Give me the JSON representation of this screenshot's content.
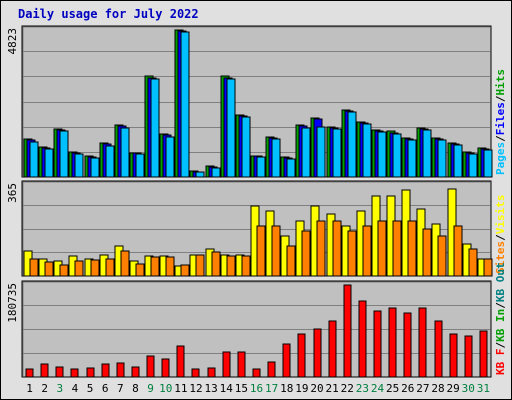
{
  "title": "Daily usage for July 2022",
  "colors": {
    "frame_bg": "#e0e0e0",
    "plot_bg": "#c0c0c0",
    "hits": "#00a000",
    "files": "#0000ff",
    "pages": "#00c0ff",
    "visits": "#ffff00",
    "sites": "#ff8000",
    "kb_in": "#00a000",
    "kb_out": "#008080",
    "kb_f": "#ff0000",
    "weekday_label": "#000000",
    "weekend_label": "#008040",
    "title_color": "#0000c0"
  },
  "chart_data": [
    {
      "type": "bar",
      "name": "hits-files-pages",
      "ymax_label": "4823",
      "ylim": [
        0,
        4823
      ],
      "legend": [
        {
          "label": "Pages",
          "color": "#00c0ff"
        },
        {
          "label": "Files",
          "color": "#0000ff"
        },
        {
          "label": "Hits",
          "color": "#00a000"
        }
      ],
      "legend_sep": "/",
      "categories": [
        "1",
        "2",
        "3",
        "4",
        "5",
        "6",
        "7",
        "8",
        "9",
        "10",
        "11",
        "12",
        "13",
        "14",
        "15",
        "16",
        "17",
        "18",
        "19",
        "20",
        "21",
        "22",
        "23",
        "24",
        "25",
        "26",
        "27",
        "28",
        "29",
        "30",
        "31"
      ],
      "series": [
        {
          "name": "Hits",
          "values": [
            1250,
            1000,
            1580,
            820,
            680,
            1100,
            1700,
            800,
            3300,
            1400,
            4823,
            200,
            350,
            3300,
            2050,
            700,
            1320,
            650,
            1700,
            1950,
            1650,
            2200,
            1800,
            1550,
            1500,
            1280,
            1600,
            1280,
            1120,
            820,
            950
          ]
        },
        {
          "name": "Files",
          "values": [
            1200,
            950,
            1550,
            790,
            650,
            1070,
            1660,
            780,
            3260,
            1370,
            4800,
            180,
            330,
            3260,
            2000,
            680,
            1290,
            630,
            1660,
            1900,
            1620,
            2160,
            1760,
            1510,
            1460,
            1250,
            1560,
            1250,
            1090,
            800,
            930
          ]
        },
        {
          "name": "Pages",
          "values": [
            1150,
            910,
            1500,
            760,
            610,
            1030,
            1620,
            750,
            3220,
            1320,
            4750,
            150,
            300,
            3230,
            1960,
            640,
            1250,
            600,
            1620,
            1630,
            1580,
            2120,
            1730,
            1470,
            1420,
            1210,
            1530,
            1220,
            1050,
            760,
            900
          ]
        }
      ]
    },
    {
      "type": "bar",
      "name": "visits-sites",
      "ymax_label": "365",
      "ylim": [
        0,
        365
      ],
      "legend": [
        {
          "label": "Sites",
          "color": "#ff8000"
        },
        {
          "label": "Visits",
          "color": "#ffff00"
        }
      ],
      "legend_sep": "/",
      "categories": [
        "1",
        "2",
        "3",
        "4",
        "5",
        "6",
        "7",
        "8",
        "9",
        "10",
        "11",
        "12",
        "13",
        "14",
        "15",
        "16",
        "17",
        "18",
        "19",
        "20",
        "21",
        "22",
        "23",
        "24",
        "25",
        "26",
        "27",
        "28",
        "29",
        "30",
        "31"
      ],
      "series": [
        {
          "name": "Visits",
          "values": [
            100,
            70,
            60,
            80,
            70,
            85,
            120,
            60,
            80,
            80,
            40,
            85,
            110,
            85,
            85,
            280,
            260,
            160,
            220,
            280,
            250,
            200,
            260,
            320,
            320,
            345,
            270,
            210,
            350,
            130,
            70
          ]
        },
        {
          "name": "Sites",
          "values": [
            70,
            55,
            45,
            60,
            65,
            70,
            100,
            50,
            75,
            75,
            45,
            85,
            95,
            80,
            80,
            200,
            200,
            120,
            180,
            220,
            220,
            180,
            200,
            220,
            220,
            220,
            190,
            160,
            200,
            110,
            70
          ]
        }
      ]
    },
    {
      "type": "bar",
      "name": "kbytes",
      "ymax_label": "180735",
      "ylim": [
        0,
        180735
      ],
      "legend": [
        {
          "label": "KB F",
          "color": "#ff0000"
        },
        {
          "label": "KB In",
          "color": "#00a000"
        },
        {
          "label": "KB Out",
          "color": "#008080"
        }
      ],
      "legend_sep": "/",
      "categories": [
        "1",
        "2",
        "3",
        "4",
        "5",
        "6",
        "7",
        "8",
        "9",
        "10",
        "11",
        "12",
        "13",
        "14",
        "15",
        "16",
        "17",
        "18",
        "19",
        "20",
        "21",
        "22",
        "23",
        "24",
        "25",
        "26",
        "27",
        "28",
        "29",
        "30",
        "31"
      ],
      "series": [
        {
          "name": "KB F",
          "values": [
            15000,
            25000,
            20000,
            15000,
            18000,
            25000,
            28000,
            20000,
            42000,
            35000,
            60000,
            15000,
            18000,
            50000,
            50000,
            15000,
            30000,
            65000,
            85000,
            95000,
            110000,
            180735,
            150000,
            130000,
            135000,
            125000,
            135000,
            110000,
            85000,
            80000,
            90000
          ]
        }
      ]
    }
  ],
  "days": [
    {
      "label": "1",
      "weekend": false
    },
    {
      "label": "2",
      "weekend": false
    },
    {
      "label": "3",
      "weekend": true
    },
    {
      "label": "4",
      "weekend": false
    },
    {
      "label": "5",
      "weekend": false
    },
    {
      "label": "6",
      "weekend": false
    },
    {
      "label": "7",
      "weekend": false
    },
    {
      "label": "8",
      "weekend": false
    },
    {
      "label": "9",
      "weekend": true
    },
    {
      "label": "10",
      "weekend": true
    },
    {
      "label": "11",
      "weekend": false
    },
    {
      "label": "12",
      "weekend": false
    },
    {
      "label": "13",
      "weekend": false
    },
    {
      "label": "14",
      "weekend": false
    },
    {
      "label": "15",
      "weekend": false
    },
    {
      "label": "16",
      "weekend": true
    },
    {
      "label": "17",
      "weekend": true
    },
    {
      "label": "18",
      "weekend": false
    },
    {
      "label": "19",
      "weekend": false
    },
    {
      "label": "20",
      "weekend": false
    },
    {
      "label": "21",
      "weekend": false
    },
    {
      "label": "22",
      "weekend": false
    },
    {
      "label": "23",
      "weekend": true
    },
    {
      "label": "24",
      "weekend": true
    },
    {
      "label": "25",
      "weekend": false
    },
    {
      "label": "26",
      "weekend": false
    },
    {
      "label": "27",
      "weekend": false
    },
    {
      "label": "28",
      "weekend": false
    },
    {
      "label": "29",
      "weekend": false
    },
    {
      "label": "30",
      "weekend": true
    },
    {
      "label": "31",
      "weekend": true
    }
  ]
}
